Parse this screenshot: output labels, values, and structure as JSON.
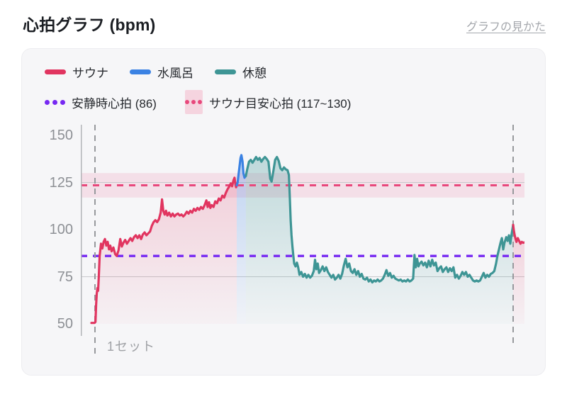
{
  "header": {
    "title": "心拍グラフ (bpm)",
    "help_link": "グラフの見かた"
  },
  "legend": {
    "series": [
      {
        "id": "sauna",
        "label": "サウナ",
        "color": "#e13560"
      },
      {
        "id": "mizuburo",
        "label": "水風呂",
        "color": "#3b82e3"
      },
      {
        "id": "kyukei",
        "label": "休憩",
        "color": "#3e9595"
      }
    ],
    "lines": [
      {
        "id": "resting",
        "label": "安静時心拍 (86)",
        "color": "#7729f2",
        "value": 86
      },
      {
        "id": "target",
        "label": "サウナ目安心拍 (117~130)",
        "color": "#e8487c",
        "band_color": "#f5d4df",
        "range": [
          117,
          130
        ]
      }
    ]
  },
  "chart_data": {
    "type": "line",
    "title": "心拍グラフ (bpm)",
    "ylabel": "bpm",
    "ylim": [
      50,
      150
    ],
    "yticks": [
      150,
      125,
      100,
      75,
      50
    ],
    "grid_values": [
      125,
      75
    ],
    "x_axis_label": "1セット",
    "resting_hr": 86,
    "resting_line_color": "#7729f2",
    "target_range": [
      117,
      130
    ],
    "target_line_color": "#e8487c",
    "target_band_color": "rgba(232,72,124,0.13)",
    "set_markers_pct": [
      3.2,
      97.44
    ],
    "axis_color": "#b3b5b9",
    "grid_color": "#c8c9cc",
    "marker_color": "#97999d",
    "series": [
      {
        "name": "サウナ",
        "phase": "sauna",
        "color": "#e13560",
        "points": [
          [
            2.4,
            50.5
          ],
          [
            3.1,
            50.5
          ],
          [
            3.3,
            51
          ],
          [
            3.45,
            60
          ],
          [
            3.6,
            66
          ],
          [
            3.75,
            69
          ],
          [
            3.9,
            67.5
          ],
          [
            4.05,
            75
          ],
          [
            4.25,
            86
          ],
          [
            4.55,
            92.5
          ],
          [
            4.85,
            90
          ],
          [
            5.15,
            93.5
          ],
          [
            5.45,
            95
          ],
          [
            5.75,
            91.5
          ],
          [
            6.05,
            93.5
          ],
          [
            6.35,
            89.5
          ],
          [
            6.65,
            91.5
          ],
          [
            6.95,
            88.5
          ],
          [
            7.35,
            90.5
          ],
          [
            7.75,
            87
          ],
          [
            8.1,
            86
          ],
          [
            8.5,
            89
          ],
          [
            8.9,
            95
          ],
          [
            9.25,
            91
          ],
          [
            9.6,
            93
          ],
          [
            10.0,
            94.5
          ],
          [
            10.4,
            92.5
          ],
          [
            10.8,
            94
          ],
          [
            11.2,
            95.5
          ],
          [
            11.6,
            94
          ],
          [
            12.0,
            96
          ],
          [
            12.4,
            97
          ],
          [
            12.8,
            95.5
          ],
          [
            13.2,
            97
          ],
          [
            13.6,
            95
          ],
          [
            14.0,
            97.5
          ],
          [
            14.4,
            98.5
          ],
          [
            14.8,
            97
          ],
          [
            15.2,
            98
          ],
          [
            15.6,
            99
          ],
          [
            16.0,
            102
          ],
          [
            16.4,
            104
          ],
          [
            16.8,
            105
          ],
          [
            17.2,
            104
          ],
          [
            17.6,
            105.5
          ],
          [
            18.0,
            109
          ],
          [
            18.3,
            116
          ],
          [
            18.6,
            110
          ],
          [
            18.9,
            108
          ],
          [
            19.2,
            110
          ],
          [
            19.5,
            107.5
          ],
          [
            19.9,
            109
          ],
          [
            20.3,
            107
          ],
          [
            20.7,
            108.5
          ],
          [
            21.1,
            107
          ],
          [
            21.5,
            108
          ],
          [
            21.9,
            108.5
          ],
          [
            22.3,
            107.5
          ],
          [
            22.7,
            108
          ],
          [
            23.1,
            107
          ],
          [
            23.5,
            108
          ],
          [
            23.9,
            109.5
          ],
          [
            24.3,
            108.5
          ],
          [
            24.7,
            110
          ],
          [
            25.1,
            109
          ],
          [
            25.5,
            111
          ],
          [
            25.9,
            110
          ],
          [
            26.3,
            111.5
          ],
          [
            26.7,
            110.5
          ],
          [
            27.1,
            112
          ],
          [
            27.5,
            111
          ],
          [
            27.9,
            113
          ],
          [
            28.3,
            115.5
          ],
          [
            28.6,
            112
          ],
          [
            28.9,
            114.5
          ],
          [
            29.2,
            111.5
          ],
          [
            29.5,
            113
          ],
          [
            29.9,
            112
          ],
          [
            30.3,
            115
          ],
          [
            30.7,
            114
          ],
          [
            31.1,
            116.5
          ],
          [
            31.5,
            115.5
          ],
          [
            31.9,
            118
          ],
          [
            32.3,
            117
          ],
          [
            32.7,
            119.5
          ],
          [
            33.1,
            121.5
          ],
          [
            33.5,
            123
          ],
          [
            33.8,
            124.5
          ],
          [
            34.1,
            123
          ],
          [
            34.4,
            126
          ],
          [
            34.65,
            127.5
          ],
          [
            34.85,
            124
          ],
          [
            35.0,
            122.5
          ],
          [
            35.15,
            123.5
          ]
        ]
      },
      {
        "name": "水風呂",
        "phase": "mizuburo",
        "color": "#3b82e3",
        "points": [
          [
            35.15,
            123.5
          ],
          [
            35.35,
            125
          ],
          [
            35.55,
            129
          ],
          [
            35.8,
            134
          ],
          [
            36.0,
            138
          ],
          [
            36.2,
            139.5
          ],
          [
            36.45,
            136
          ],
          [
            36.65,
            130
          ],
          [
            36.9,
            127.5
          ],
          [
            37.2,
            128.5
          ]
        ]
      },
      {
        "name": "休憩",
        "phase": "kyukei",
        "color": "#3e9595",
        "points": [
          [
            37.2,
            128.5
          ],
          [
            37.5,
            132
          ],
          [
            37.9,
            136
          ],
          [
            38.3,
            137
          ],
          [
            38.7,
            135.5
          ],
          [
            39.1,
            137
          ],
          [
            39.5,
            138.5
          ],
          [
            39.9,
            137
          ],
          [
            40.3,
            138
          ],
          [
            40.7,
            136
          ],
          [
            41.1,
            137.5
          ],
          [
            41.5,
            138.5
          ],
          [
            41.9,
            137.5
          ],
          [
            42.3,
            136
          ],
          [
            42.7,
            127
          ],
          [
            43.0,
            125.5
          ],
          [
            43.4,
            131
          ],
          [
            43.8,
            137
          ],
          [
            44.2,
            138.5
          ],
          [
            44.6,
            136.5
          ],
          [
            45.0,
            132.5
          ],
          [
            45.4,
            131.5
          ],
          [
            45.8,
            133
          ],
          [
            46.2,
            132
          ],
          [
            46.6,
            131.5
          ],
          [
            46.9,
            129
          ],
          [
            47.1,
            118
          ],
          [
            47.3,
            105
          ],
          [
            47.5,
            97
          ],
          [
            47.7,
            91
          ],
          [
            47.9,
            86
          ],
          [
            48.1,
            82
          ],
          [
            48.4,
            80.5
          ],
          [
            48.7,
            82.5
          ],
          [
            49.0,
            80
          ],
          [
            49.3,
            76
          ],
          [
            49.7,
            77.5
          ],
          [
            50.1,
            75
          ],
          [
            50.5,
            76.5
          ],
          [
            50.9,
            74.5
          ],
          [
            51.3,
            76
          ],
          [
            51.7,
            74.5
          ],
          [
            52.1,
            75.5
          ],
          [
            52.5,
            78
          ],
          [
            52.8,
            84
          ],
          [
            53.1,
            79
          ],
          [
            53.4,
            82
          ],
          [
            53.7,
            77
          ],
          [
            54.1,
            78.5
          ],
          [
            54.5,
            80.5
          ],
          [
            54.9,
            78
          ],
          [
            55.3,
            80
          ],
          [
            55.7,
            77.5
          ],
          [
            56.1,
            76
          ],
          [
            56.5,
            74.5
          ],
          [
            56.9,
            76
          ],
          [
            57.3,
            73.5
          ],
          [
            57.7,
            74.5
          ],
          [
            58.1,
            76
          ],
          [
            58.5,
            74
          ],
          [
            58.9,
            76.5
          ],
          [
            59.3,
            81
          ],
          [
            59.7,
            84.5
          ],
          [
            60.1,
            80
          ],
          [
            60.5,
            82
          ],
          [
            60.9,
            78
          ],
          [
            61.3,
            77
          ],
          [
            61.7,
            79
          ],
          [
            62.1,
            76
          ],
          [
            62.5,
            78
          ],
          [
            62.9,
            75
          ],
          [
            63.3,
            76.5
          ],
          [
            63.7,
            74
          ],
          [
            64.1,
            73.5
          ],
          [
            64.5,
            74.5
          ],
          [
            64.9,
            72.5
          ],
          [
            65.3,
            73.5
          ],
          [
            65.7,
            72
          ],
          [
            66.1,
            73
          ],
          [
            66.5,
            72.5
          ],
          [
            66.9,
            73.5
          ],
          [
            67.3,
            72.5
          ],
          [
            67.7,
            73
          ],
          [
            68.1,
            74
          ],
          [
            68.5,
            76
          ],
          [
            68.9,
            78.5
          ],
          [
            69.3,
            75.5
          ],
          [
            69.7,
            77
          ],
          [
            70.1,
            74.5
          ],
          [
            70.5,
            75.5
          ],
          [
            70.9,
            74
          ],
          [
            71.3,
            73.5
          ],
          [
            71.7,
            73
          ],
          [
            72.1,
            73.5
          ],
          [
            72.5,
            72.5
          ],
          [
            72.9,
            73
          ],
          [
            73.3,
            72.5
          ],
          [
            73.7,
            73.5
          ],
          [
            74.1,
            72.5
          ],
          [
            74.5,
            73
          ],
          [
            74.9,
            74
          ],
          [
            75.2,
            86.5
          ],
          [
            75.5,
            80
          ],
          [
            75.8,
            84.5
          ],
          [
            76.1,
            80.5
          ],
          [
            76.4,
            82
          ],
          [
            76.8,
            83
          ],
          [
            77.2,
            81
          ],
          [
            77.6,
            82.5
          ],
          [
            78.0,
            80
          ],
          [
            78.4,
            83.5
          ],
          [
            78.8,
            80.5
          ],
          [
            79.2,
            84
          ],
          [
            79.6,
            81
          ],
          [
            80.0,
            82.5
          ],
          [
            80.4,
            78
          ],
          [
            80.8,
            79.5
          ],
          [
            81.2,
            80.5
          ],
          [
            81.6,
            77.5
          ],
          [
            82.0,
            79
          ],
          [
            82.4,
            80
          ],
          [
            82.8,
            77.5
          ],
          [
            83.2,
            79.5
          ],
          [
            83.6,
            78
          ],
          [
            84.0,
            80
          ],
          [
            84.4,
            74.5
          ],
          [
            84.8,
            76
          ],
          [
            85.2,
            74
          ],
          [
            85.6,
            75.5
          ],
          [
            86.0,
            77.5
          ],
          [
            86.4,
            76
          ],
          [
            86.8,
            77.5
          ],
          [
            87.2,
            75
          ],
          [
            87.6,
            76
          ],
          [
            88.0,
            74.5
          ],
          [
            88.4,
            73
          ],
          [
            88.8,
            72.5
          ],
          [
            89.2,
            73
          ],
          [
            89.6,
            72.5
          ],
          [
            90.0,
            73
          ],
          [
            90.4,
            75
          ],
          [
            90.8,
            77
          ],
          [
            91.2,
            74.5
          ],
          [
            91.6,
            76
          ],
          [
            92.0,
            75
          ],
          [
            92.4,
            76.5
          ],
          [
            92.8,
            77
          ],
          [
            93.2,
            78
          ],
          [
            93.6,
            82
          ],
          [
            93.9,
            86
          ],
          [
            94.3,
            90
          ],
          [
            94.6,
            93
          ],
          [
            94.9,
            95.5
          ],
          [
            95.2,
            89.5
          ],
          [
            95.5,
            93
          ],
          [
            95.9,
            96
          ],
          [
            96.2,
            94
          ],
          [
            96.5,
            97
          ],
          [
            96.8,
            92.5
          ],
          [
            97.1,
            97.5
          ],
          [
            97.44,
            102.5
          ]
        ]
      },
      {
        "name": "サウナ",
        "phase": "sauna",
        "color": "#e13560",
        "points": [
          [
            97.44,
            102.5
          ],
          [
            97.6,
            99.5
          ],
          [
            97.8,
            97
          ],
          [
            98.0,
            95
          ],
          [
            98.2,
            93.5
          ],
          [
            98.5,
            95.5
          ],
          [
            98.8,
            94
          ],
          [
            99.1,
            92.5
          ],
          [
            99.4,
            93.5
          ],
          [
            99.7,
            93
          ],
          [
            100,
            93.2
          ]
        ]
      }
    ]
  }
}
